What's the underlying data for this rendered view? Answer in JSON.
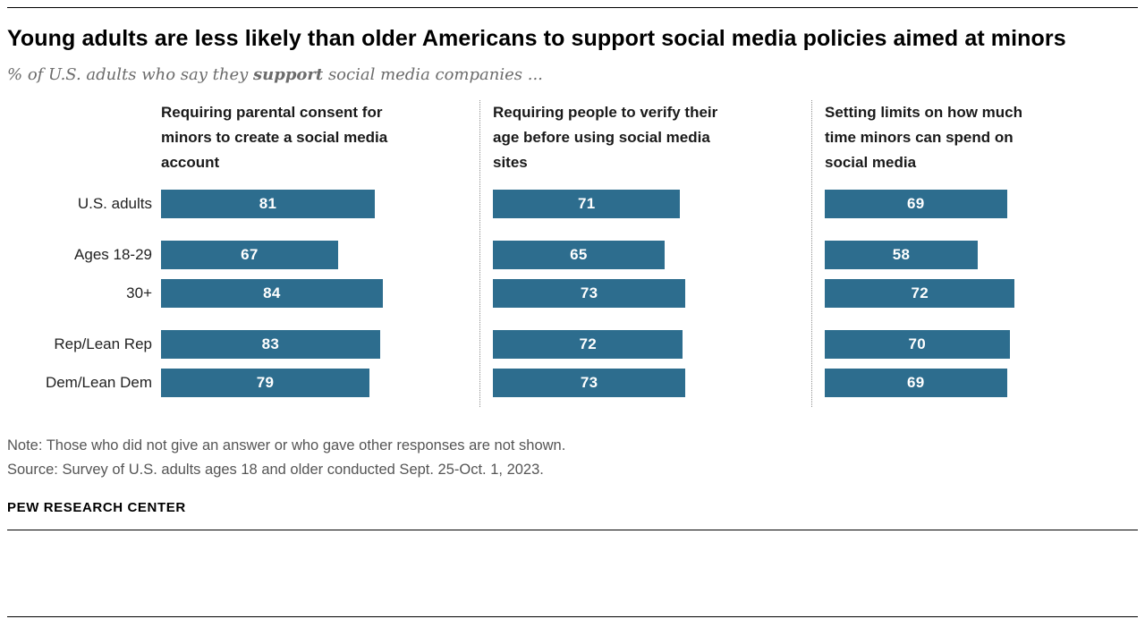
{
  "title": "Young adults are less likely than older Americans to support social media policies aimed at minors",
  "subtitle": {
    "prefix": "% of U.S. adults who say they ",
    "emphasis": "support",
    "suffix": " social media companies ..."
  },
  "chart_data": {
    "type": "bar",
    "orientation": "horizontal",
    "categories": [
      "U.S. adults",
      "Ages 18-29",
      "30+",
      "Rep/Lean Rep",
      "Dem/Lean Dem"
    ],
    "group_breaks_after": [
      0,
      2
    ],
    "panels": [
      {
        "header": "Requiring parental consent for minors to create a social media account",
        "values": [
          81,
          67,
          84,
          83,
          79
        ]
      },
      {
        "header": "Requiring people to verify their age before using social media sites",
        "values": [
          71,
          65,
          73,
          72,
          73
        ]
      },
      {
        "header": "Setting limits on how much time minors can spend on social media",
        "values": [
          69,
          58,
          72,
          70,
          69
        ]
      }
    ],
    "bar_color": "#2d6d8e",
    "value_label_color": "#ffffff",
    "xlim": [
      0,
      100
    ],
    "grid": false,
    "legend": false
  },
  "note": "Note: Those who did not give an answer or who gave other responses are not shown.",
  "source": "Source: Survey of U.S. adults ages 18 and older conducted Sept. 25-Oct. 1, 2023.",
  "brand": "PEW RESEARCH CENTER"
}
